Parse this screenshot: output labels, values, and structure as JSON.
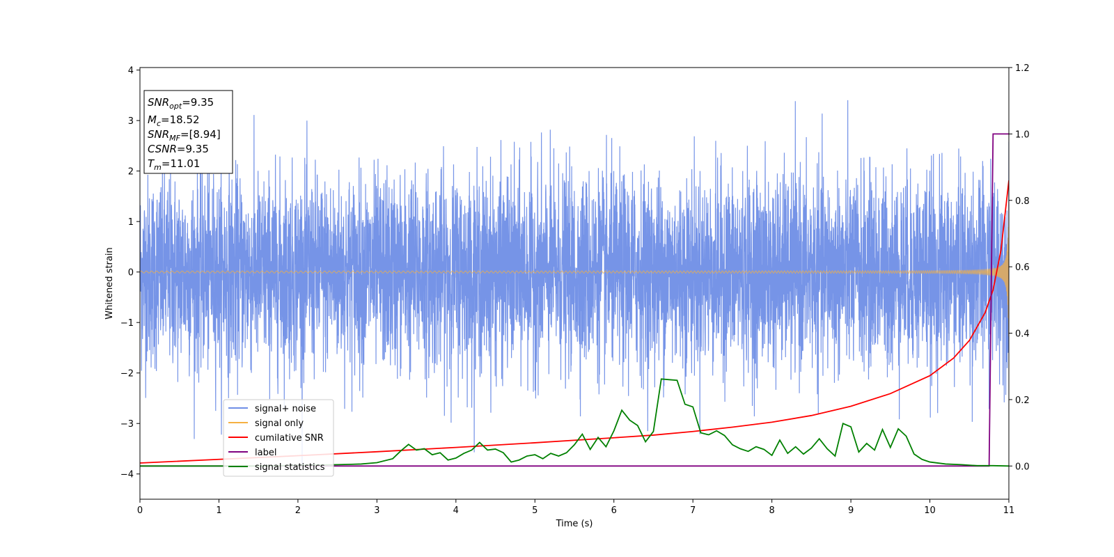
{
  "chart_data": {
    "type": "line",
    "title": "",
    "xlabel": "Time (s)",
    "ylabel": "Whitened strain",
    "ylabel_right": "",
    "xlim": [
      0,
      11
    ],
    "ylim": [
      -4.5,
      4.05
    ],
    "ylim_right": [
      -0.1,
      1.2
    ],
    "x_ticks": [
      0,
      1,
      2,
      3,
      4,
      5,
      6,
      7,
      8,
      9,
      10,
      11
    ],
    "y_ticks": [
      -4,
      -3,
      -2,
      -1,
      0,
      1,
      2,
      3,
      4
    ],
    "y_ticks_right": [
      0.0,
      0.2,
      0.4,
      0.6,
      0.8,
      1.0,
      1.2
    ],
    "grid": false,
    "legend_position": "lower-left",
    "annotation": {
      "lines": [
        {
          "base": "SNR",
          "sub": "opt",
          "value": "=9.35"
        },
        {
          "base": "M",
          "sub": "c",
          "value": "=18.52"
        },
        {
          "base": "SNR",
          "sub": "MF",
          "value": "=[8.94]"
        },
        {
          "base": "CSNR",
          "sub": "",
          "value": "=9.35"
        },
        {
          "base": "T",
          "sub": "m",
          "value": "=11.01"
        }
      ]
    },
    "series": [
      {
        "name": "signal+ noise",
        "axis": "left",
        "color": "#6f8ee6",
        "kind": "noise",
        "description_values": {
          "sigma": 0.95,
          "t_range": [
            0,
            11
          ]
        }
      },
      {
        "name": "signal only",
        "axis": "left",
        "color": "#f5b041",
        "kind": "chirp",
        "amplitude_at_end": 1.9,
        "t_coalescence": 11.01
      },
      {
        "name": "cumilative SNR",
        "axis": "right",
        "color": "#ff0000",
        "x": [
          0,
          1,
          2,
          3,
          4,
          5,
          6,
          6.5,
          7,
          7.5,
          8,
          8.5,
          9,
          9.5,
          10,
          10.3,
          10.5,
          10.7,
          10.8,
          10.9,
          11
        ],
        "values": [
          0.009,
          0.02,
          0.031,
          0.043,
          0.056,
          0.07,
          0.085,
          0.093,
          0.104,
          0.117,
          0.132,
          0.152,
          0.18,
          0.218,
          0.272,
          0.325,
          0.378,
          0.462,
          0.53,
          0.65,
          0.86
        ]
      },
      {
        "name": "label",
        "axis": "right",
        "color": "#800080",
        "x": [
          0,
          10.75,
          10.8,
          10.84,
          11
        ],
        "values": [
          0,
          0,
          1,
          1,
          1
        ]
      },
      {
        "name": "signal statistics",
        "axis": "right",
        "color": "#008000",
        "x": [
          0,
          0.5,
          1,
          1.5,
          2,
          2.5,
          2.8,
          3.0,
          3.2,
          3.3,
          3.4,
          3.5,
          3.6,
          3.7,
          3.8,
          3.9,
          4.0,
          4.1,
          4.2,
          4.3,
          4.4,
          4.5,
          4.6,
          4.7,
          4.8,
          4.9,
          5.0,
          5.1,
          5.2,
          5.3,
          5.4,
          5.5,
          5.6,
          5.7,
          5.8,
          5.9,
          6.0,
          6.1,
          6.2,
          6.3,
          6.4,
          6.5,
          6.6,
          6.7,
          6.8,
          6.9,
          7.0,
          7.1,
          7.2,
          7.3,
          7.4,
          7.5,
          7.6,
          7.7,
          7.8,
          7.9,
          8.0,
          8.1,
          8.2,
          8.3,
          8.4,
          8.5,
          8.6,
          8.7,
          8.8,
          8.9,
          9.0,
          9.1,
          9.2,
          9.3,
          9.4,
          9.5,
          9.6,
          9.7,
          9.8,
          9.9,
          10.0,
          10.2,
          10.4,
          10.6,
          10.8,
          11
        ],
        "values": [
          0.0,
          0.0,
          0.0,
          0.0,
          0.002,
          0.004,
          0.006,
          0.01,
          0.022,
          0.045,
          0.065,
          0.048,
          0.052,
          0.034,
          0.04,
          0.018,
          0.024,
          0.038,
          0.048,
          0.071,
          0.048,
          0.051,
          0.04,
          0.012,
          0.018,
          0.03,
          0.034,
          0.022,
          0.038,
          0.03,
          0.04,
          0.064,
          0.096,
          0.05,
          0.086,
          0.058,
          0.106,
          0.168,
          0.138,
          0.122,
          0.073,
          0.104,
          0.262,
          0.26,
          0.258,
          0.186,
          0.178,
          0.1,
          0.094,
          0.106,
          0.092,
          0.064,
          0.052,
          0.044,
          0.058,
          0.05,
          0.032,
          0.078,
          0.038,
          0.058,
          0.036,
          0.054,
          0.082,
          0.052,
          0.03,
          0.128,
          0.118,
          0.042,
          0.068,
          0.048,
          0.11,
          0.056,
          0.112,
          0.09,
          0.036,
          0.02,
          0.012,
          0.006,
          0.004,
          0.001,
          0.001,
          0.0
        ]
      }
    ]
  }
}
